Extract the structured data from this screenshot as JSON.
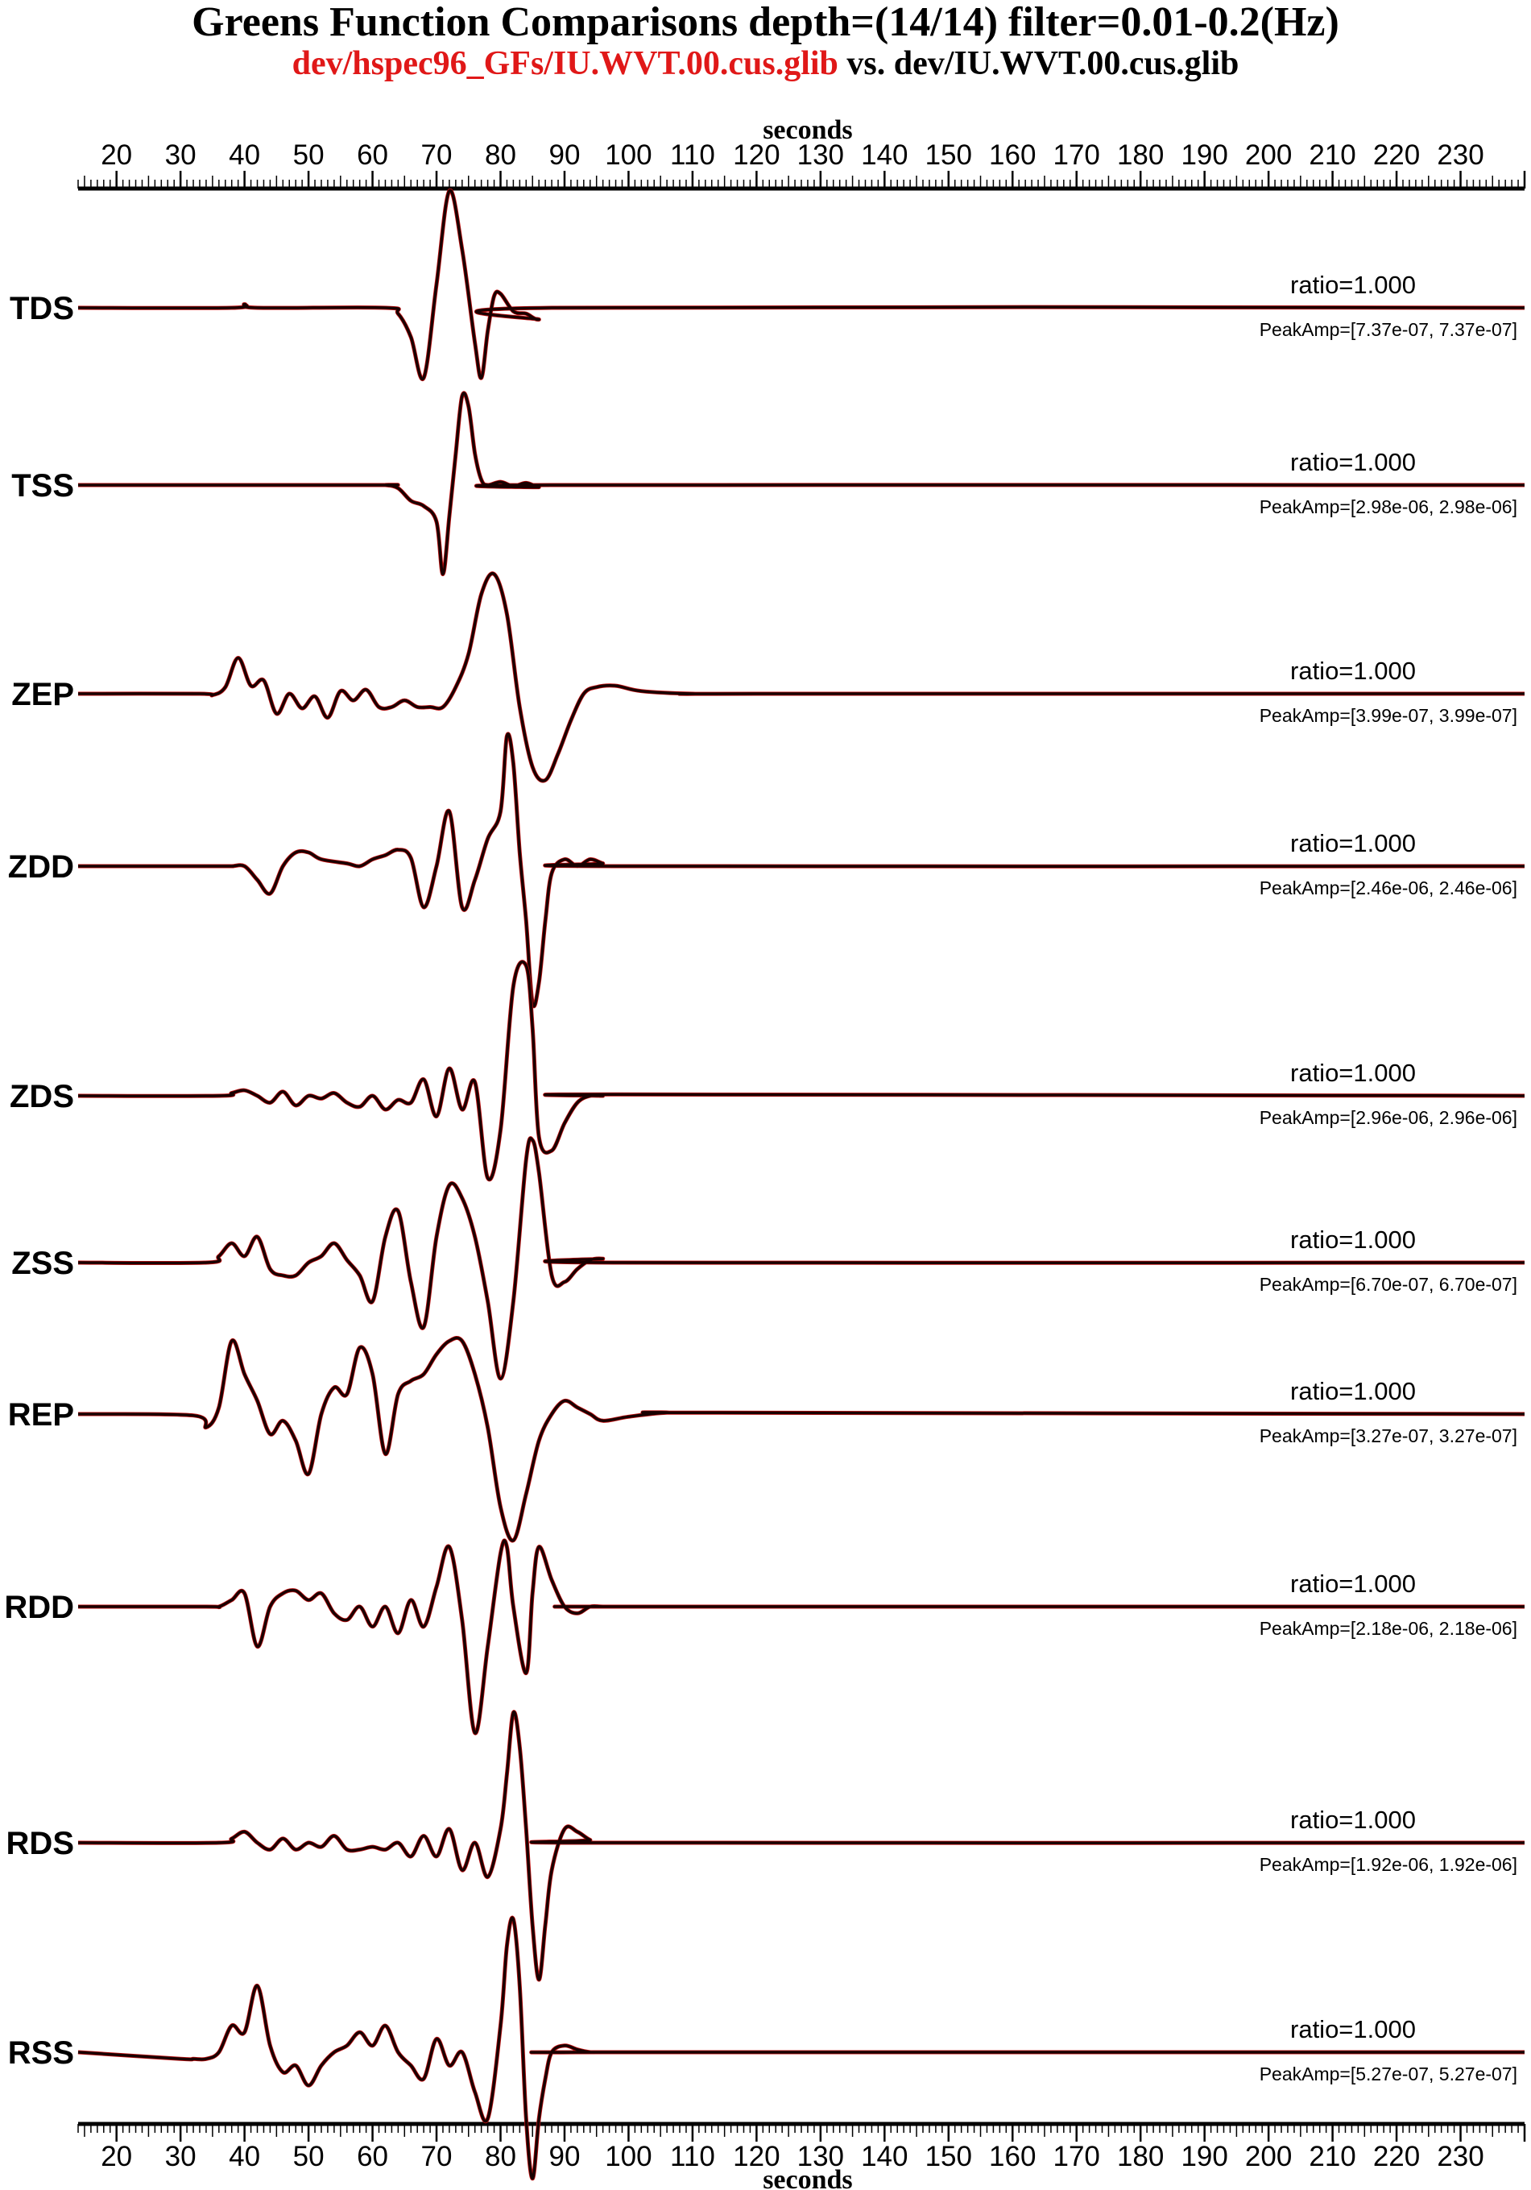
{
  "title": "Greens Function Comparisons depth=(14/14) filter=0.01-0.2(Hz)",
  "subtitle": {
    "red_part": "dev/hspec96_GFs/IU.WVT.00.cus.glib",
    "vs_text": "vs.",
    "black_part": "dev/IU.WVT.00.cus.glib"
  },
  "chart_data": {
    "type": "line",
    "xlabel": "seconds",
    "xlim": [
      14,
      240
    ],
    "xticks": [
      20,
      30,
      40,
      50,
      60,
      70,
      80,
      90,
      100,
      110,
      120,
      130,
      140,
      150,
      160,
      170,
      180,
      190,
      200,
      210,
      220,
      230
    ],
    "minor_tick_step": 1,
    "series_colors": {
      "reference": "#c81414",
      "comparison": "#1a0000"
    },
    "traces": [
      {
        "name": "TDS",
        "ratio": "ratio=1.000",
        "peak_amp": "PeakAmp=[7.37e-07, 7.37e-07]",
        "x": [
          14,
          38,
          40,
          42,
          62,
          64,
          66,
          68,
          70,
          72,
          74,
          76,
          77,
          78,
          79,
          80,
          82,
          84,
          86,
          88,
          240
        ],
        "y": [
          0,
          0,
          0.03,
          0,
          0,
          -0.05,
          -0.25,
          -0.6,
          0.2,
          1.0,
          0.5,
          -0.3,
          -0.6,
          -0.2,
          0.1,
          0.12,
          -0.03,
          -0.05,
          -0.1,
          0,
          0
        ]
      },
      {
        "name": "TSS",
        "ratio": "ratio=1.000",
        "peak_amp": "PeakAmp=[2.98e-06, 2.98e-06]",
        "x": [
          14,
          60,
          62,
          64,
          66,
          68,
          70,
          71,
          72,
          73,
          74,
          75,
          76,
          77,
          78,
          80,
          82,
          84,
          86,
          88,
          240
        ],
        "y": [
          0,
          0,
          0,
          -0.03,
          -0.15,
          -0.2,
          -0.35,
          -0.85,
          -0.3,
          0.3,
          0.85,
          0.75,
          0.3,
          0.05,
          0,
          0.03,
          -0.01,
          0.02,
          -0.02,
          0,
          0
        ]
      },
      {
        "name": "ZEP",
        "ratio": "ratio=1.000",
        "peak_amp": "PeakAmp=[3.99e-07, 3.99e-07]",
        "x": [
          14,
          33,
          35,
          37,
          39,
          41,
          43,
          45,
          47,
          49,
          51,
          53,
          55,
          57,
          59,
          61,
          63,
          65,
          67,
          69,
          71,
          73,
          75,
          77,
          79,
          81,
          83,
          85,
          87,
          89,
          91,
          93,
          95,
          98,
          102,
          110,
          120,
          240
        ],
        "y": [
          0,
          0,
          -0.01,
          0.05,
          0.27,
          0.06,
          0.1,
          -0.15,
          0.0,
          -0.11,
          -0.02,
          -0.18,
          0.02,
          -0.05,
          0.03,
          -0.1,
          -0.1,
          -0.05,
          -0.1,
          -0.1,
          -0.1,
          0.05,
          0.3,
          0.75,
          0.9,
          0.6,
          -0.1,
          -0.55,
          -0.65,
          -0.45,
          -0.2,
          0.0,
          0.05,
          0.06,
          0.02,
          0,
          0,
          0
        ]
      },
      {
        "name": "ZDD",
        "ratio": "ratio=1.000",
        "peak_amp": "PeakAmp=[2.46e-06, 2.46e-06]",
        "x": [
          14,
          36,
          38,
          40,
          42,
          44,
          46,
          48,
          50,
          52,
          56,
          58,
          60,
          62,
          64,
          66,
          68,
          70,
          72,
          74,
          76,
          78,
          80,
          81,
          82,
          83,
          84,
          85,
          86,
          87,
          88,
          90,
          92,
          94,
          96,
          98,
          240
        ],
        "y": [
          0,
          0,
          0,
          0,
          -0.1,
          -0.2,
          0.0,
          0.1,
          0.1,
          0.05,
          0.02,
          0.0,
          0.05,
          0.08,
          0.12,
          0.06,
          -0.3,
          0.0,
          0.4,
          -0.3,
          -0.1,
          0.2,
          0.4,
          0.95,
          0.75,
          0.1,
          -0.4,
          -1.0,
          -0.85,
          -0.4,
          -0.05,
          0.05,
          0.0,
          0.05,
          0.02,
          0,
          0
        ]
      },
      {
        "name": "ZDS",
        "ratio": "ratio=1.000",
        "peak_amp": "PeakAmp=[2.96e-06, 2.96e-06]",
        "x": [
          14,
          36,
          38,
          40,
          42,
          44,
          46,
          48,
          50,
          52,
          54,
          56,
          58,
          60,
          62,
          64,
          66,
          68,
          70,
          72,
          74,
          76,
          78,
          80,
          82,
          84,
          85,
          86,
          88,
          90,
          92,
          94,
          96,
          98,
          240
        ],
        "y": [
          0,
          0,
          0.02,
          0.04,
          0.0,
          -0.05,
          0.03,
          -0.07,
          0.0,
          -0.02,
          0.02,
          -0.05,
          -0.08,
          0.0,
          -0.1,
          -0.03,
          -0.05,
          0.12,
          -0.15,
          0.2,
          -0.1,
          0.1,
          -0.6,
          -0.25,
          0.8,
          0.95,
          0.5,
          -0.3,
          -0.4,
          -0.2,
          -0.05,
          0.0,
          0.0,
          0.01,
          0
        ]
      },
      {
        "name": "ZSS",
        "ratio": "ratio=1.000",
        "peak_amp": "PeakAmp=[6.70e-07, 6.70e-07]",
        "x": [
          14,
          34,
          36,
          38,
          40,
          42,
          44,
          46,
          48,
          50,
          52,
          54,
          56,
          58,
          60,
          62,
          64,
          66,
          68,
          70,
          72,
          74,
          76,
          78,
          80,
          82,
          84,
          85,
          86,
          88,
          90,
          92,
          94,
          96,
          98,
          240
        ],
        "y": [
          0,
          0,
          0.05,
          0.15,
          0.05,
          0.2,
          -0.05,
          -0.1,
          -0.1,
          0.0,
          0.05,
          0.15,
          0.02,
          -0.1,
          -0.3,
          0.2,
          0.4,
          -0.15,
          -0.5,
          0.2,
          0.6,
          0.5,
          0.2,
          -0.3,
          -0.9,
          -0.3,
          0.8,
          0.95,
          0.7,
          -0.1,
          -0.15,
          -0.05,
          0.02,
          0.03,
          0.0,
          0
        ]
      },
      {
        "name": "REP",
        "ratio": "ratio=1.000",
        "peak_amp": "PeakAmp=[3.27e-07, 3.27e-07]",
        "x": [
          14,
          32,
          34,
          36,
          38,
          40,
          42,
          44,
          46,
          48,
          50,
          52,
          54,
          56,
          58,
          60,
          62,
          64,
          66,
          68,
          70,
          72,
          74,
          76,
          78,
          80,
          82,
          84,
          86,
          88,
          90,
          92,
          94,
          96,
          100,
          106,
          114,
          240
        ],
        "y": [
          0,
          -0.01,
          -0.1,
          0.05,
          0.55,
          0.3,
          0.1,
          -0.15,
          -0.05,
          -0.2,
          -0.45,
          0.0,
          0.2,
          0.15,
          0.5,
          0.3,
          -0.3,
          0.15,
          0.25,
          0.3,
          0.45,
          0.55,
          0.55,
          0.3,
          -0.1,
          -0.7,
          -0.95,
          -0.6,
          -0.2,
          0.0,
          0.1,
          0.05,
          0.0,
          -0.05,
          -0.02,
          0.01,
          0.01,
          0
        ]
      },
      {
        "name": "RDD",
        "ratio": "ratio=1.000",
        "peak_amp": "PeakAmp=[2.18e-06, 2.18e-06]",
        "x": [
          14,
          34,
          36,
          38,
          40,
          42,
          44,
          46,
          48,
          50,
          52,
          54,
          56,
          58,
          60,
          62,
          64,
          66,
          68,
          70,
          72,
          74,
          76,
          78,
          80,
          81,
          82,
          84,
          85,
          86,
          88,
          90,
          92,
          94,
          96,
          100,
          240
        ],
        "y": [
          0,
          0,
          0.0,
          0.05,
          0.1,
          -0.3,
          0.0,
          0.1,
          0.12,
          0.05,
          0.1,
          -0.05,
          -0.1,
          0.0,
          -0.15,
          0.0,
          -0.2,
          0.05,
          -0.15,
          0.15,
          0.45,
          -0.1,
          -0.95,
          -0.3,
          0.4,
          0.45,
          0.0,
          -0.5,
          0.1,
          0.45,
          0.2,
          0.0,
          -0.05,
          0.0,
          0.0,
          0,
          0
        ]
      },
      {
        "name": "RDS",
        "ratio": "ratio=1.000",
        "peak_amp": "PeakAmp=[1.92e-06, 1.92e-06]",
        "x": [
          14,
          36,
          38,
          40,
          42,
          44,
          46,
          48,
          50,
          52,
          54,
          56,
          58,
          60,
          62,
          64,
          66,
          68,
          70,
          72,
          74,
          76,
          78,
          80,
          81,
          82,
          83,
          84,
          85,
          86,
          87,
          88,
          90,
          92,
          94,
          96,
          240
        ],
        "y": [
          0,
          0,
          0.03,
          0.08,
          0.0,
          -0.05,
          0.03,
          -0.05,
          0.0,
          -0.03,
          0.05,
          -0.05,
          -0.05,
          -0.03,
          -0.05,
          0.0,
          -0.1,
          0.05,
          -0.1,
          0.1,
          -0.2,
          0.0,
          -0.25,
          0.1,
          0.5,
          0.95,
          0.7,
          0.1,
          -0.6,
          -1.0,
          -0.6,
          -0.2,
          0.1,
          0.08,
          0.02,
          0.0,
          0
        ]
      },
      {
        "name": "RSS",
        "ratio": "ratio=1.000",
        "peak_amp": "PeakAmp=[5.27e-07, 5.27e-07]",
        "x": [
          14,
          30,
          32,
          34,
          36,
          38,
          40,
          42,
          44,
          46,
          48,
          50,
          52,
          54,
          56,
          58,
          60,
          62,
          64,
          66,
          68,
          70,
          72,
          74,
          76,
          78,
          80,
          81,
          82,
          83,
          84,
          85,
          86,
          87,
          88,
          90,
          92,
          94,
          96,
          240
        ],
        "y": [
          0,
          -0.05,
          -0.05,
          -0.05,
          0.0,
          0.2,
          0.15,
          0.5,
          0.05,
          -0.15,
          -0.1,
          -0.25,
          -0.1,
          0.0,
          0.05,
          0.15,
          0.05,
          0.2,
          0.0,
          -0.1,
          -0.2,
          0.1,
          -0.1,
          0.0,
          -0.3,
          -0.5,
          0.2,
          0.8,
          1.0,
          0.5,
          -0.5,
          -0.95,
          -0.5,
          -0.2,
          0.0,
          0.05,
          0.02,
          0.0,
          0.0,
          0
        ]
      }
    ]
  }
}
